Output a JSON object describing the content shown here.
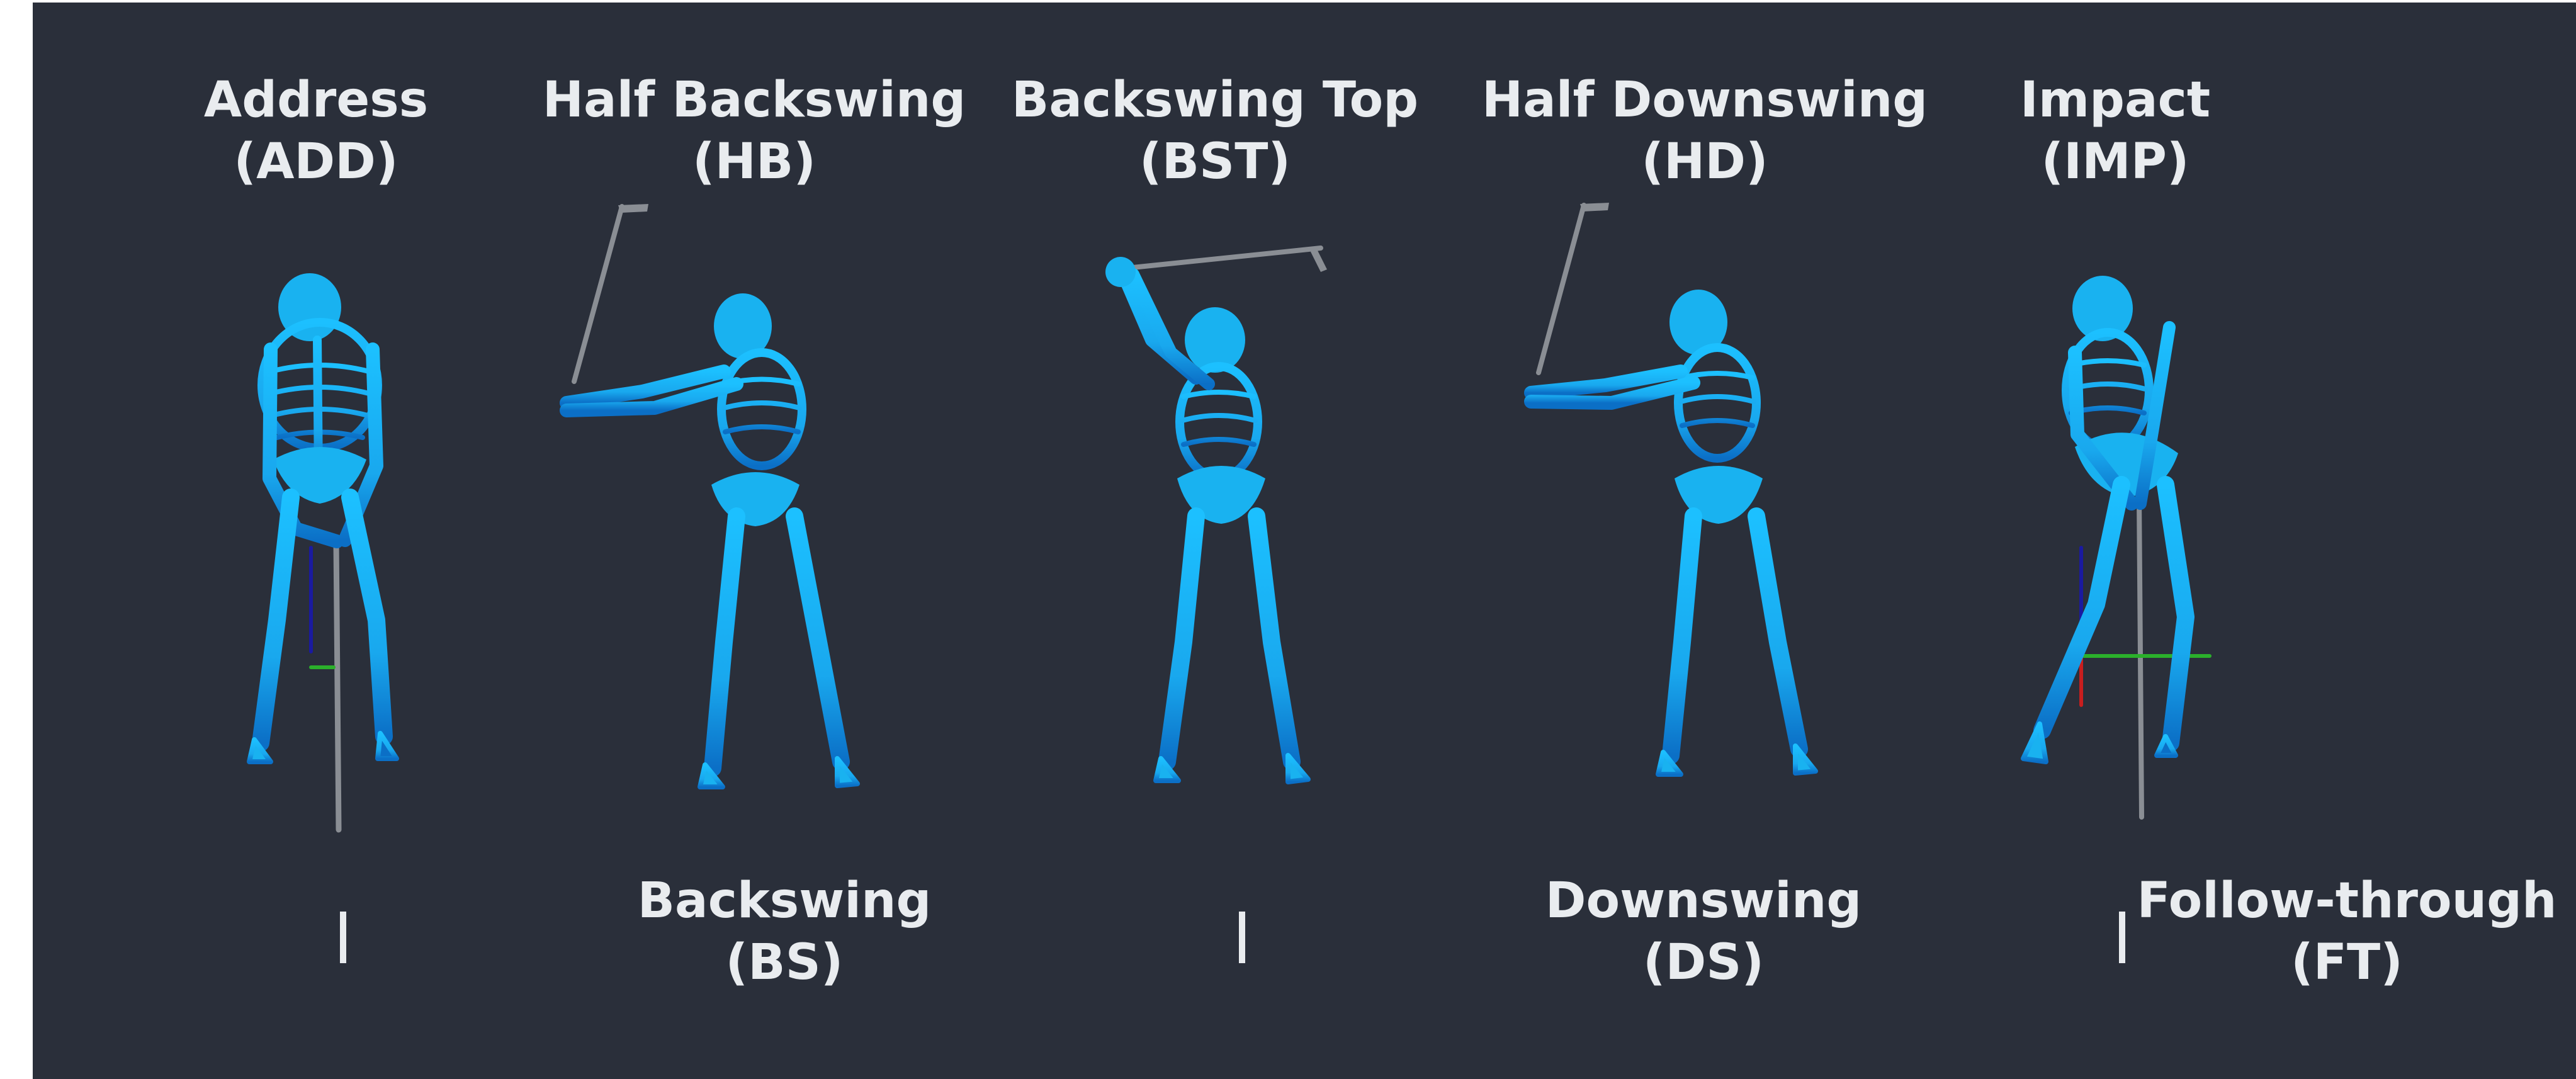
{
  "poses": [
    {
      "name": "Address",
      "abbr": "(ADD)"
    },
    {
      "name": "Half Backswing",
      "abbr": "(HB)"
    },
    {
      "name": "Backswing Top",
      "abbr": "(BST)"
    },
    {
      "name": "Half Downswing",
      "abbr": "(HD)"
    },
    {
      "name": "Impact",
      "abbr": "(IMP)"
    }
  ],
  "phases": [
    {
      "name": "Backswing",
      "abbr": "(BS)"
    },
    {
      "name": "Downswing",
      "abbr": "(DS)"
    },
    {
      "name": "Follow-through",
      "abbr": "(FT)"
    }
  ],
  "phase_separator": "|",
  "colors": {
    "background": "#2a2f3a",
    "skeleton": "#19b2f0",
    "skeleton_dark": "#0a74c8",
    "club": "#8a8e94",
    "text": "#e9ecef",
    "axis_x": "#2bb02b",
    "axis_y": "#1a1aa0",
    "axis_z": "#c81e1e"
  }
}
